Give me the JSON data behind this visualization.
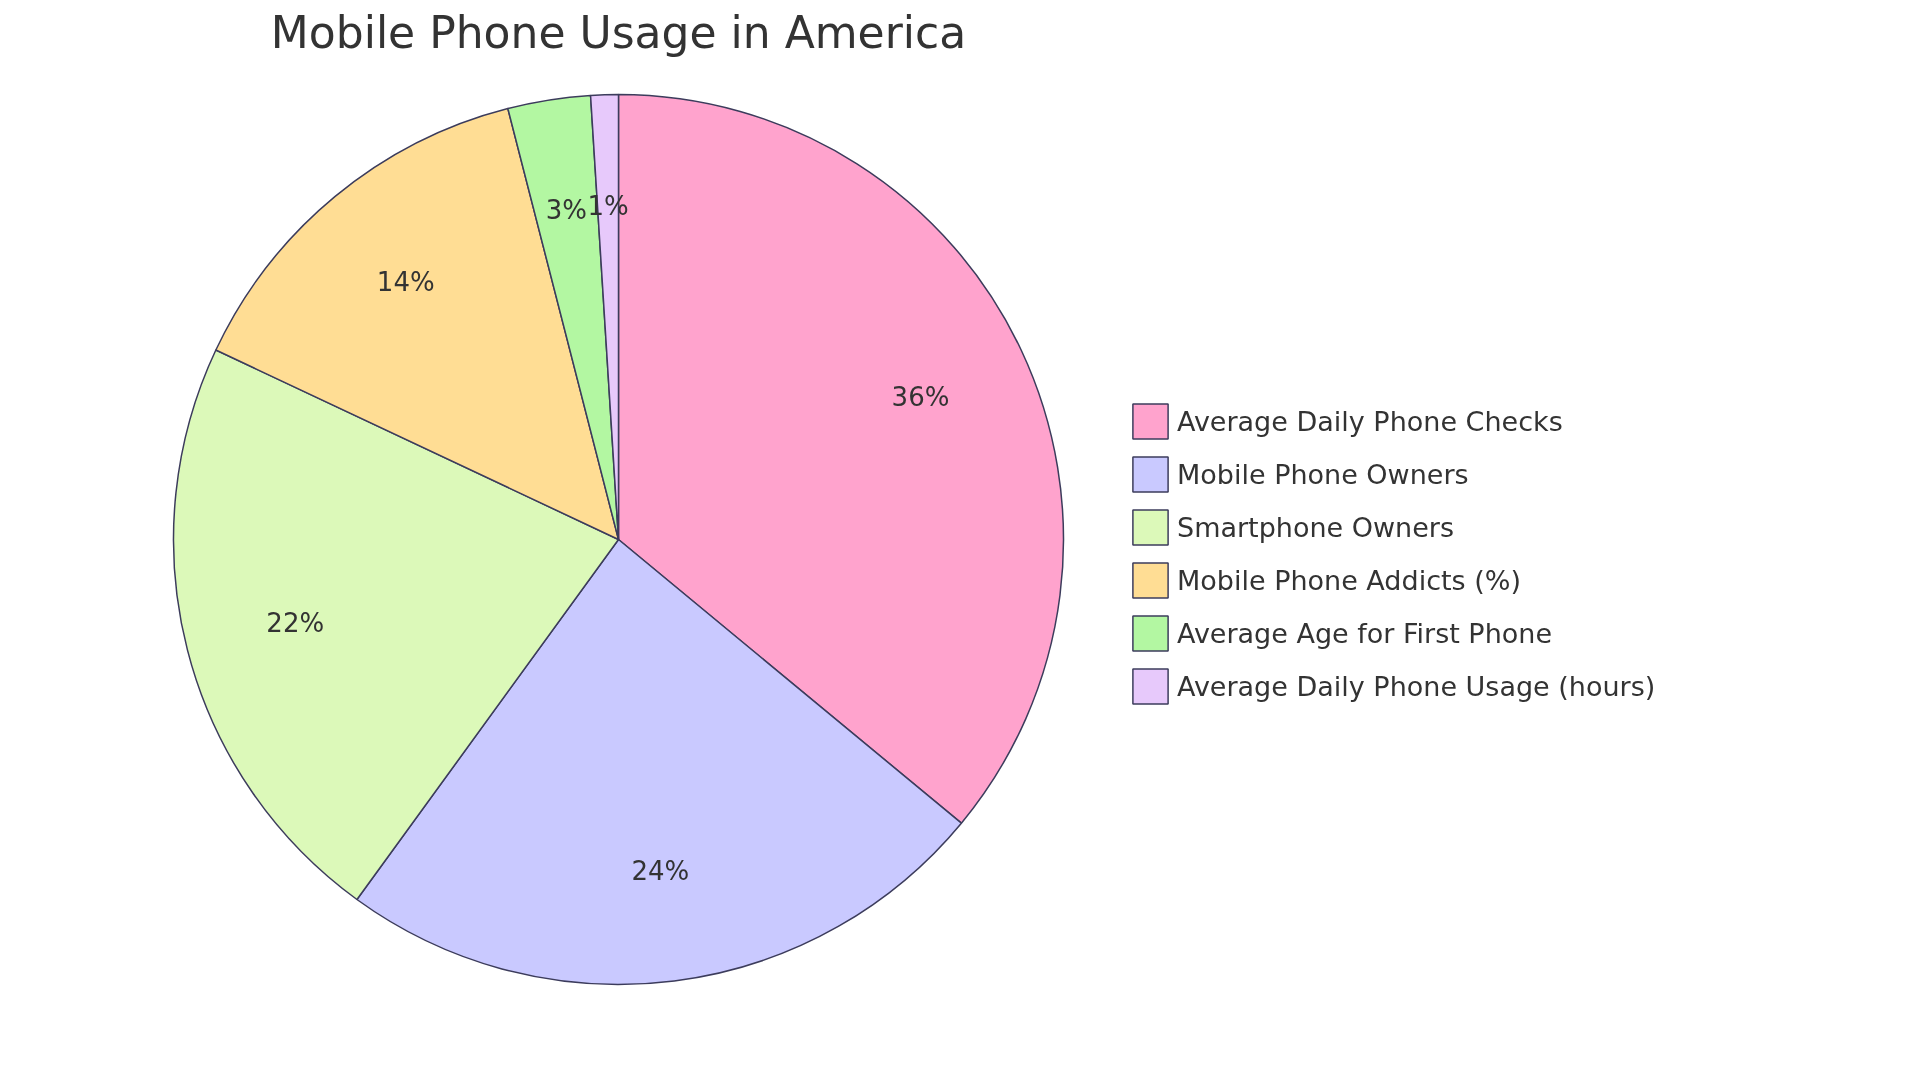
{
  "chart_data": {
    "type": "pie",
    "title": "Mobile Phone Usage in America",
    "categories": [
      "Average Daily Phone Checks",
      "Mobile Phone Owners",
      "Smartphone Owners",
      "Mobile Phone Addicts (%)",
      "Average Age for First Phone",
      "Average Daily Phone Usage (hours)"
    ],
    "values": [
      36,
      24,
      22,
      14,
      3,
      1
    ],
    "colors": [
      "#ffa3cd",
      "#c9c9ff",
      "#dcf9b9",
      "#ffdd94",
      "#b3f7a2",
      "#e7c9fb"
    ],
    "value_labels": [
      "36%",
      "24%",
      "22%",
      "14%",
      "3%",
      "1%"
    ],
    "legend": "right"
  }
}
